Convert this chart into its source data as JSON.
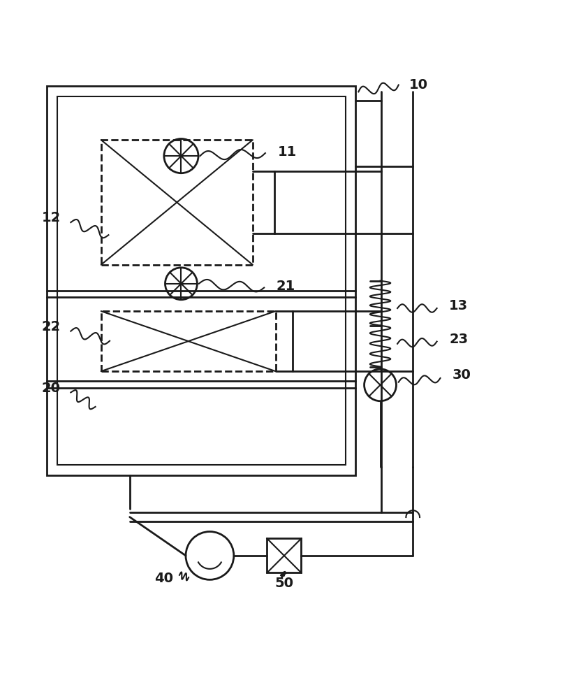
{
  "bg_color": "#ffffff",
  "line_color": "#1a1a1a",
  "lw": 2.0,
  "lw2": 1.5,
  "fig_w": 8.22,
  "fig_h": 10.0
}
